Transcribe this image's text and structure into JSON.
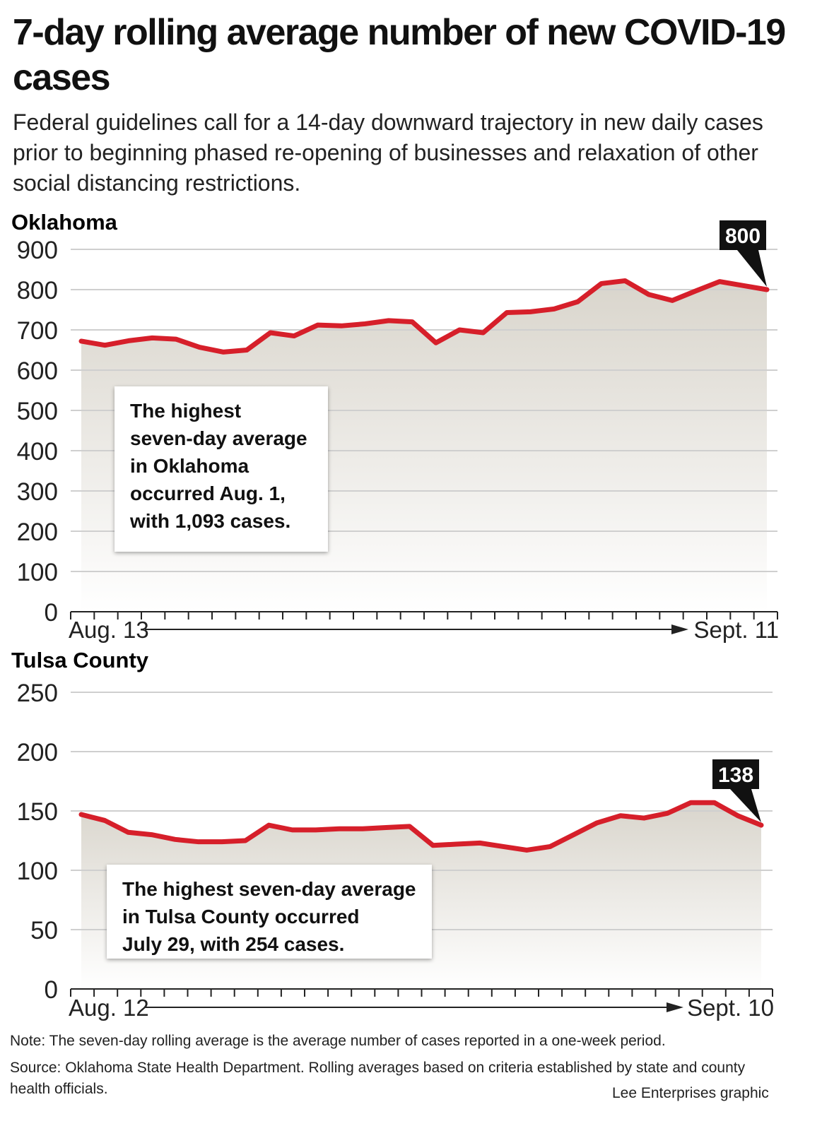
{
  "title": "7-day rolling average number of new COVID-19 cases",
  "subtitle": "Federal guidelines call for a 14-day downward trajectory in new daily cases prior to beginning phased re-opening of businesses and relaxation of other social distancing restrictions.",
  "chart_data": [
    {
      "type": "area",
      "title": "Oklahoma",
      "ylim": [
        0,
        900
      ],
      "yticks": [
        "0",
        "100",
        "200",
        "300",
        "400",
        "500",
        "600",
        "700",
        "800",
        "900"
      ],
      "x_start_label": "Aug. 13",
      "x_end_label": "Sept. 11",
      "values": [
        672,
        662,
        673,
        680,
        677,
        657,
        645,
        650,
        693,
        685,
        712,
        710,
        715,
        723,
        720,
        668,
        700,
        693,
        743,
        745,
        752,
        770,
        815,
        822,
        788,
        773,
        797,
        820,
        810,
        800
      ],
      "end_label": "800",
      "annotation": [
        "The highest",
        "seven-day average",
        "in Oklahoma",
        "occurred Aug. 1,",
        "with 1,093 cases."
      ],
      "line_color": "#d61f2a"
    },
    {
      "type": "area",
      "title": "Tulsa County",
      "ylim": [
        0,
        250
      ],
      "yticks": [
        "0",
        "50",
        "100",
        "150",
        "200",
        "250"
      ],
      "x_start_label": "Aug. 12",
      "x_end_label": "Sept. 10",
      "values": [
        147,
        142,
        132,
        130,
        126,
        124,
        124,
        125,
        138,
        134,
        134,
        135,
        135,
        136,
        137,
        121,
        122,
        123,
        120,
        117,
        120,
        130,
        140,
        146,
        144,
        148,
        157,
        157,
        146,
        138
      ],
      "end_label": "138",
      "annotation": [
        "The highest seven-day average",
        "in Tulsa County occurred",
        "July 29, with 254 cases."
      ],
      "line_color": "#d61f2a"
    }
  ],
  "footer": {
    "note": "Note: The seven-day rolling average is the average number of cases reported in a one-week period.",
    "source": "Source: Oklahoma State Health Department. Rolling averages based on criteria established by state and county health officials.",
    "credit": "Lee Enterprises graphic"
  }
}
